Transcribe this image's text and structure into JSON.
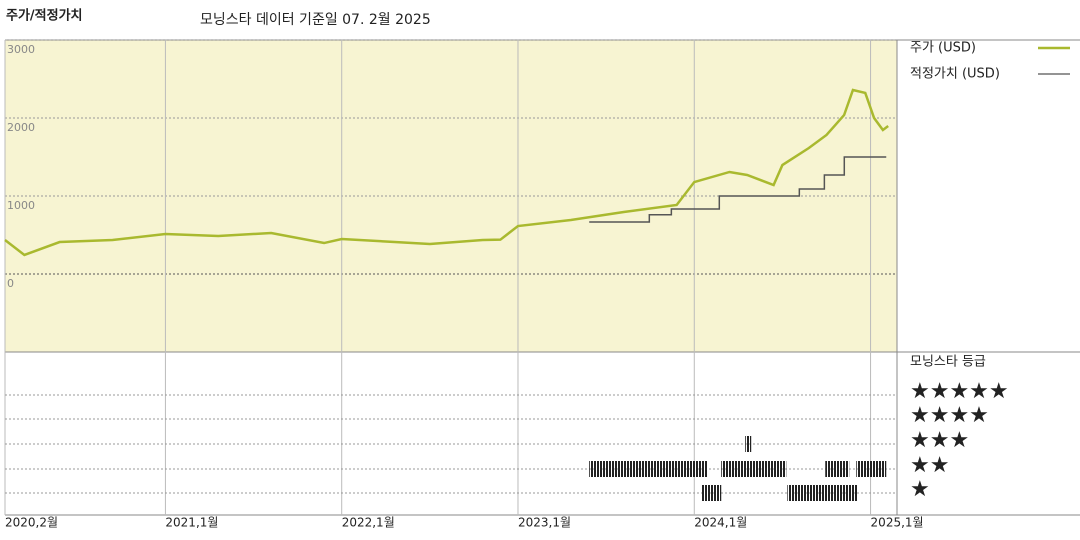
{
  "chart_data": {
    "type": "line",
    "title": "주가/적정가치",
    "subtitle": "모닝스타 데이터 기준일 07. 2월 2025",
    "xlim": [
      2020.09,
      2025.15
    ],
    "xticks": [
      {
        "value": 2020.09,
        "label": "2020,2월"
      },
      {
        "value": 2021.0,
        "label": "2021,1월"
      },
      {
        "value": 2022.0,
        "label": "2022,1월"
      },
      {
        "value": 2023.0,
        "label": "2023,1월"
      },
      {
        "value": 2024.0,
        "label": "2024,1월"
      },
      {
        "value": 2025.0,
        "label": "2025,1월"
      }
    ],
    "ylim": [
      -1000,
      3000
    ],
    "yticks": [
      0,
      1000,
      2000,
      3000
    ],
    "grid": true,
    "series": [
      {
        "name": "주가 (USD)",
        "color": "#a9b92f",
        "x": [
          2020.09,
          2020.2,
          2020.4,
          2020.7,
          2021.0,
          2021.3,
          2021.6,
          2021.9,
          2022.0,
          2022.3,
          2022.5,
          2022.8,
          2022.9,
          2023.0,
          2023.3,
          2023.6,
          2023.9,
          2024.0,
          2024.2,
          2024.3,
          2024.45,
          2024.5,
          2024.65,
          2024.75,
          2024.85,
          2024.9,
          2024.97,
          2025.02,
          2025.07,
          2025.1
        ],
        "values": [
          436,
          244,
          410,
          436,
          513,
          487,
          526,
          397,
          449,
          410,
          385,
          436,
          440,
          615,
          692,
          795,
          885,
          1179,
          1308,
          1269,
          1141,
          1397,
          1615,
          1782,
          2038,
          2359,
          2321,
          2000,
          1846,
          1897
        ]
      },
      {
        "name": "적정가치 (USD)",
        "color": "#555555",
        "x": [
          2023.404,
          2023.745,
          2023.745,
          2023.87,
          2023.87,
          2024.142,
          2024.142,
          2024.596,
          2024.596,
          2024.738,
          2024.738,
          2024.851,
          2024.851,
          2025.089
        ],
        "values": [
          667,
          667,
          760,
          760,
          833,
          833,
          1000,
          1000,
          1090,
          1090,
          1269,
          1269,
          1500,
          1500
        ]
      }
    ],
    "star_ratings": {
      "title": "모닝스타 등급",
      "rows": [
        {
          "label": "★★★★★",
          "periods": []
        },
        {
          "label": "★★★★",
          "periods": []
        },
        {
          "label": "★★★",
          "periods": [
            [
              2024.289,
              2024.323
            ]
          ]
        },
        {
          "label": "★★",
          "periods": [
            [
              2023.404,
              2024.074
            ],
            [
              2024.153,
              2024.522
            ],
            [
              2024.743,
              2024.879
            ],
            [
              2024.919,
              2025.089
            ]
          ]
        },
        {
          "label": "★",
          "periods": [
            [
              2024.04,
              2024.153
            ],
            [
              2024.528,
              2024.925
            ]
          ]
        }
      ]
    }
  }
}
